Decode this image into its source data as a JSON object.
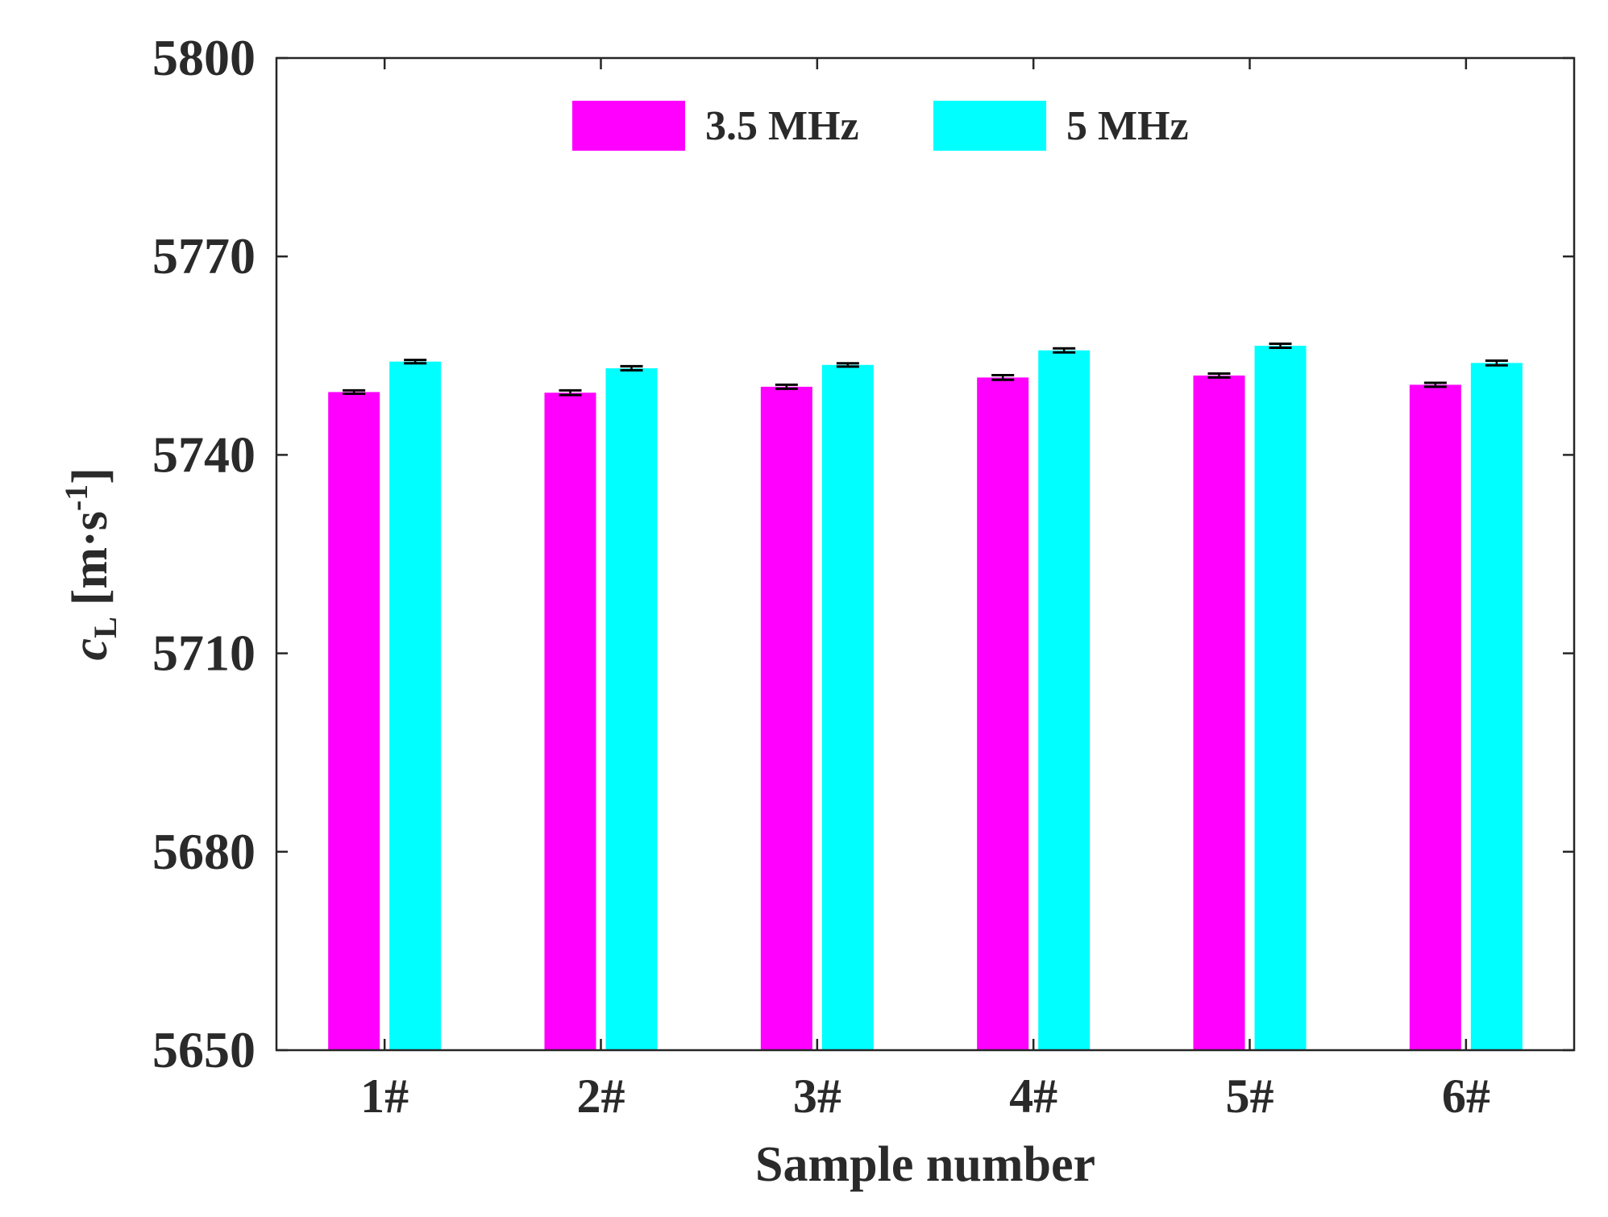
{
  "chart_data": {
    "type": "bar",
    "title": "",
    "xlabel": "Sample number",
    "ylabel": {
      "symbol": "c",
      "subscript": "L",
      "unit_prefix": "[m·s",
      "unit_exponent": "-1",
      "unit_suffix": "]"
    },
    "ylim": [
      5650,
      5800
    ],
    "yticks": [
      5650,
      5680,
      5710,
      5740,
      5770,
      5800
    ],
    "ytick_labels": [
      "5650",
      "5680",
      "5710",
      "5740",
      "5770",
      "5800"
    ],
    "categories": [
      "1#",
      "2#",
      "3#",
      "4#",
      "5#",
      "6#"
    ],
    "legend_position": "top-center",
    "grid": false,
    "series": [
      {
        "name": "3.5 MHz",
        "color": "#ff00ff",
        "values": [
          5749.5,
          5749.4,
          5750.3,
          5751.7,
          5752.0,
          5750.6
        ],
        "errors": [
          0.25,
          0.35,
          0.3,
          0.35,
          0.3,
          0.3
        ]
      },
      {
        "name": "5 MHz",
        "color": "#00ffff",
        "values": [
          5754.1,
          5753.1,
          5753.6,
          5755.8,
          5756.5,
          5753.9
        ],
        "errors": [
          0.25,
          0.3,
          0.25,
          0.3,
          0.3,
          0.35
        ]
      }
    ]
  }
}
